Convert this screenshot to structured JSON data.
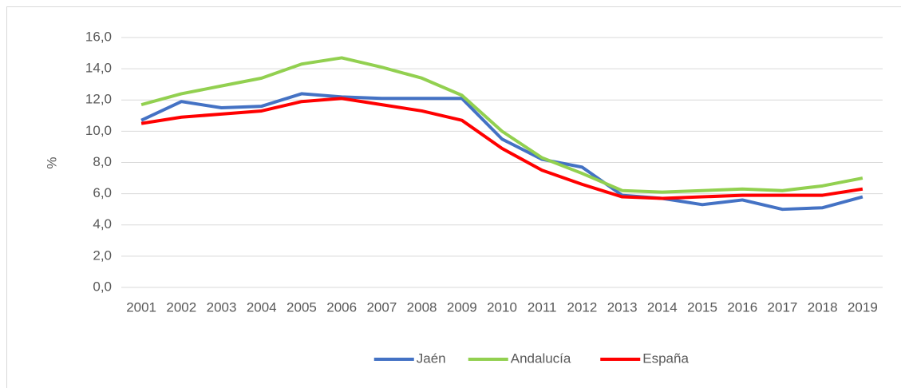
{
  "chart_data": {
    "type": "line",
    "y_label": "%",
    "categories": [
      "2001",
      "2002",
      "2003",
      "2004",
      "2005",
      "2006",
      "2007",
      "2008",
      "2009",
      "2010",
      "2011",
      "2012",
      "2013",
      "2014",
      "2015",
      "2016",
      "2017",
      "2018",
      "2019"
    ],
    "series": [
      {
        "name": "Jaén",
        "color": "#4472c4",
        "values": [
          10.7,
          11.9,
          11.5,
          11.6,
          12.4,
          12.2,
          12.1,
          12.1,
          12.1,
          9.5,
          8.2,
          7.7,
          5.9,
          5.7,
          5.3,
          5.6,
          5.0,
          5.1,
          5.8
        ]
      },
      {
        "name": "Andalucía",
        "color": "#92d050",
        "values": [
          11.7,
          12.4,
          12.9,
          13.4,
          14.3,
          14.7,
          14.1,
          13.4,
          12.3,
          10.0,
          8.3,
          7.3,
          6.2,
          6.1,
          6.2,
          6.3,
          6.2,
          6.5,
          7.0
        ]
      },
      {
        "name": "España",
        "color": "#ff0000",
        "values": [
          10.5,
          10.9,
          11.1,
          11.3,
          11.9,
          12.1,
          11.7,
          11.3,
          10.7,
          8.9,
          7.5,
          6.6,
          5.8,
          5.7,
          5.8,
          5.9,
          5.9,
          5.9,
          6.3
        ]
      }
    ],
    "ylim": [
      0,
      16
    ],
    "yticks": [
      {
        "value": 0,
        "label": "0,0"
      },
      {
        "value": 2,
        "label": "2,0"
      },
      {
        "value": 4,
        "label": "4,0"
      },
      {
        "value": 6,
        "label": "6,0"
      },
      {
        "value": 8,
        "label": "8,0"
      },
      {
        "value": 10,
        "label": "10,0"
      },
      {
        "value": 12,
        "label": "12,0"
      },
      {
        "value": 14,
        "label": "14,0"
      },
      {
        "value": 16,
        "label": "16,0"
      }
    ],
    "grid": true,
    "legend": "bottom"
  }
}
